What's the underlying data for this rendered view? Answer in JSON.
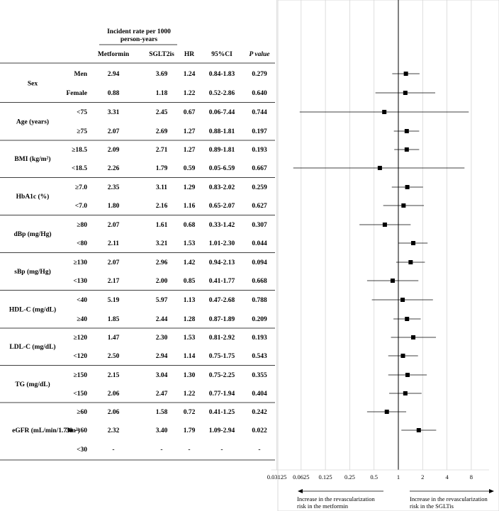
{
  "table": {
    "header": {
      "incident_rate": [
        "Incident rate per 1000",
        "person-years"
      ],
      "metformin": "Metformin",
      "sglt2is": "SGLT2is",
      "hr": "HR",
      "ci": "95%CI",
      "p_value": "P value"
    },
    "groups": [
      {
        "label": "Sex",
        "rows": [
          {
            "sub": "Men",
            "metformin": "2.94",
            "sglt2is": "3.69",
            "hr": "1.24",
            "ci": "0.84-1.83",
            "p": "0.279"
          },
          {
            "sub": "Female",
            "metformin": "0.88",
            "sglt2is": "1.18",
            "hr": "1.22",
            "ci": "0.52-2.86",
            "p": "0.640"
          }
        ]
      },
      {
        "label": "Age (years)",
        "rows": [
          {
            "sub": "<75",
            "metformin": "3.31",
            "sglt2is": "2.45",
            "hr": "0.67",
            "ci": "0.06-7.44",
            "p": "0.744"
          },
          {
            "sub": "≥75",
            "metformin": "2.07",
            "sglt2is": "2.69",
            "hr": "1.27",
            "ci": "0.88-1.81",
            "p": "0.197"
          }
        ]
      },
      {
        "label": "BMI (kg/m²)",
        "rows": [
          {
            "sub": "≥18.5",
            "metformin": "2.09",
            "sglt2is": "2.71",
            "hr": "1.27",
            "ci": "0.89-1.81",
            "p": "0.193"
          },
          {
            "sub": "<18.5",
            "metformin": "2.26",
            "sglt2is": "1.79",
            "hr": "0.59",
            "ci": "0.05-6.59",
            "p": "0.667"
          }
        ]
      },
      {
        "label": "HbA1c (%)",
        "rows": [
          {
            "sub": "≥7.0",
            "metformin": "2.35",
            "sglt2is": "3.11",
            "hr": "1.29",
            "ci": "0.83-2.02",
            "p": "0.259"
          },
          {
            "sub": "<7.0",
            "metformin": "1.80",
            "sglt2is": "2.16",
            "hr": "1.16",
            "ci": "0.65-2.07",
            "p": "0.627"
          }
        ]
      },
      {
        "label": "dBp (mg/Hg)",
        "rows": [
          {
            "sub": "≥80",
            "metformin": "2.07",
            "sglt2is": "1.61",
            "hr": "0.68",
            "ci": "0.33-1.42",
            "p": "0.307"
          },
          {
            "sub": "<80",
            "metformin": "2.11",
            "sglt2is": "3.21",
            "hr": "1.53",
            "ci": "1.01-2.30",
            "p": "0.044"
          }
        ]
      },
      {
        "label": "sBp (mg/Hg)",
        "rows": [
          {
            "sub": "≥130",
            "metformin": "2.07",
            "sglt2is": "2.96",
            "hr": "1.42",
            "ci": "0.94-2.13",
            "p": "0.094"
          },
          {
            "sub": "<130",
            "metformin": "2.17",
            "sglt2is": "2.00",
            "hr": "0.85",
            "ci": "0.41-1.77",
            "p": "0.668"
          }
        ]
      },
      {
        "label": "HDL-C (mg/dL)",
        "rows": [
          {
            "sub": "<40",
            "metformin": "5.19",
            "sglt2is": "5.97",
            "hr": "1.13",
            "ci": "0.47-2.68",
            "p": "0.788"
          },
          {
            "sub": "≥40",
            "metformin": "1.85",
            "sglt2is": "2.44",
            "hr": "1.28",
            "ci": "0.87-1.89",
            "p": "0.209"
          }
        ]
      },
      {
        "label": "LDL-C (mg/dL)",
        "rows": [
          {
            "sub": "≥120",
            "metformin": "1.47",
            "sglt2is": "2.30",
            "hr": "1.53",
            "ci": "0.81-2.92",
            "p": "0.193"
          },
          {
            "sub": "<120",
            "metformin": "2.50",
            "sglt2is": "2.94",
            "hr": "1.14",
            "ci": "0.75-1.75",
            "p": "0.543"
          }
        ]
      },
      {
        "label": "TG (mg/dL)",
        "rows": [
          {
            "sub": "≥150",
            "metformin": "2.15",
            "sglt2is": "3.04",
            "hr": "1.30",
            "ci": "0.75-2.25",
            "p": "0.355"
          },
          {
            "sub": "<150",
            "metformin": "2.06",
            "sglt2is": "2.47",
            "hr": "1.22",
            "ci": "0.77-1.94",
            "p": "0.404"
          }
        ]
      },
      {
        "label": "eGFR (mL/min/1.73m²)",
        "rows": [
          {
            "sub": "≥60",
            "metformin": "2.06",
            "sglt2is": "1.58",
            "hr": "0.72",
            "ci": "0.41-1.25",
            "p": "0.242"
          },
          {
            "sub": "30 -<60",
            "metformin": "2.32",
            "sglt2is": "3.40",
            "hr": "1.79",
            "ci": "1.09-2.94",
            "p": "0.022"
          },
          {
            "sub": "<30",
            "metformin": "-",
            "sglt2is": "-",
            "hr": "-",
            "ci": "-",
            "p": "-"
          }
        ]
      }
    ]
  },
  "chart_data": {
    "type": "forest",
    "x_scale": "log2",
    "xlim": [
      0.03125,
      8
    ],
    "reference_line": 1,
    "x_ticks": [
      "0.03125",
      "0.0625",
      "0.125",
      "0.25",
      "0.5",
      "1",
      "2",
      "4",
      "8"
    ],
    "points": [
      {
        "hr": 1.24,
        "low": 0.84,
        "high": 1.83
      },
      {
        "hr": 1.22,
        "low": 0.52,
        "high": 2.86
      },
      {
        "hr": 0.67,
        "low": 0.06,
        "high": 7.44
      },
      {
        "hr": 1.27,
        "low": 0.88,
        "high": 1.81
      },
      {
        "hr": 1.27,
        "low": 0.89,
        "high": 1.81
      },
      {
        "hr": 0.59,
        "low": 0.05,
        "high": 6.59
      },
      {
        "hr": 1.29,
        "low": 0.83,
        "high": 2.02
      },
      {
        "hr": 1.16,
        "low": 0.65,
        "high": 2.07
      },
      {
        "hr": 0.68,
        "low": 0.33,
        "high": 1.42
      },
      {
        "hr": 1.53,
        "low": 1.01,
        "high": 2.3
      },
      {
        "hr": 1.42,
        "low": 0.94,
        "high": 2.13
      },
      {
        "hr": 0.85,
        "low": 0.41,
        "high": 1.77
      },
      {
        "hr": 1.13,
        "low": 0.47,
        "high": 2.68
      },
      {
        "hr": 1.28,
        "low": 0.87,
        "high": 1.89
      },
      {
        "hr": 1.53,
        "low": 0.81,
        "high": 2.92
      },
      {
        "hr": 1.14,
        "low": 0.75,
        "high": 1.75
      },
      {
        "hr": 1.3,
        "low": 0.75,
        "high": 2.25
      },
      {
        "hr": 1.22,
        "low": 0.77,
        "high": 1.94
      },
      {
        "hr": 0.72,
        "low": 0.41,
        "high": 1.25
      },
      {
        "hr": 1.79,
        "low": 1.09,
        "high": 2.94
      }
    ],
    "left_annotation": [
      "Increase in the revascularization",
      "risk in the metformin"
    ],
    "right_annotation": [
      "Increase in the revascularization",
      "risk in the SGLTis"
    ]
  }
}
